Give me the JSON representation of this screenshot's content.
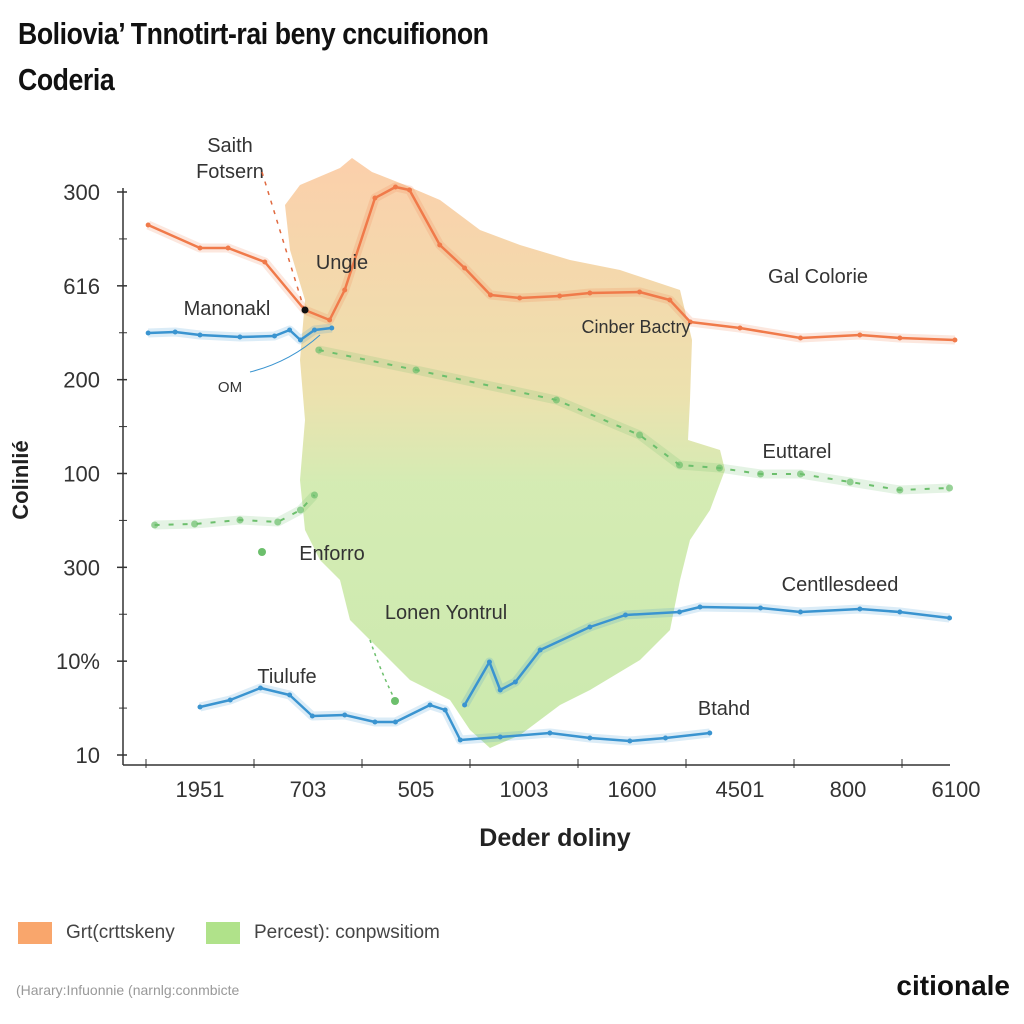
{
  "title_line1": "Boliovia’ Tnnotirt-rai beny cncuifionon",
  "title_line2": "Coderia",
  "chart_data": {
    "type": "line",
    "title": "Boliovia’ Tnnotirt-rai beny cncuifionon Coderia",
    "xlabel": "Deder doliny",
    "ylabel": "Colinlié",
    "x_tick_labels": [
      "1951",
      "703",
      "505",
      "1003",
      "1600",
      "4501",
      "800",
      "6100"
    ],
    "y_tick_labels": [
      "300",
      "616",
      "200",
      "100",
      "300",
      "10%",
      "10"
    ],
    "xlim": [
      -0.6,
      7.2
    ],
    "ylim": [
      0,
      573
    ],
    "grid": false,
    "series": [
      {
        "name": "orange-line",
        "color": "#f07a4a",
        "points": [
          [
            -0.48,
            540
          ],
          [
            0,
            517
          ],
          [
            0.26,
            517
          ],
          [
            0.6,
            503
          ],
          [
            0.97,
            455
          ],
          [
            1.2,
            445
          ],
          [
            1.34,
            475
          ],
          [
            1.62,
            567
          ],
          [
            1.81,
            578
          ],
          [
            1.94,
            575
          ],
          [
            2.22,
            520
          ],
          [
            2.45,
            497
          ],
          [
            2.69,
            470
          ],
          [
            2.96,
            467
          ],
          [
            3.33,
            469
          ],
          [
            3.61,
            472
          ],
          [
            4.07,
            473
          ],
          [
            4.35,
            465
          ],
          [
            4.54,
            443
          ],
          [
            5.0,
            437
          ],
          [
            5.56,
            427
          ],
          [
            6.11,
            430
          ],
          [
            6.48,
            427
          ],
          [
            6.99,
            425
          ]
        ]
      },
      {
        "name": "blue-upper-line",
        "color": "#3a94d0",
        "points": [
          [
            -0.48,
            432
          ],
          [
            -0.23,
            433
          ],
          [
            0,
            430
          ],
          [
            0.37,
            428
          ],
          [
            0.69,
            429
          ],
          [
            0.83,
            435
          ],
          [
            0.93,
            425
          ],
          [
            1.06,
            435
          ],
          [
            1.22,
            437
          ]
        ]
      },
      {
        "name": "green-dashed-left",
        "color": "#6cbf6c",
        "dashed": true,
        "points": [
          [
            -0.42,
            240
          ],
          [
            -0.05,
            241
          ],
          [
            0.37,
            245
          ],
          [
            0.72,
            243
          ],
          [
            0.93,
            255
          ],
          [
            1.06,
            270
          ]
        ]
      },
      {
        "name": "green-dashed-right",
        "color": "#6cbf6c",
        "dashed": true,
        "points": [
          [
            1.1,
            415
          ],
          [
            2.0,
            395
          ],
          [
            3.3,
            365
          ],
          [
            4.07,
            330
          ],
          [
            4.44,
            300
          ],
          [
            4.81,
            297
          ],
          [
            5.19,
            291
          ],
          [
            5.56,
            291
          ],
          [
            6.02,
            283
          ],
          [
            6.48,
            275
          ],
          [
            6.94,
            277
          ]
        ]
      },
      {
        "name": "blue-lower-line",
        "color": "#3a94d0",
        "points": [
          [
            0,
            58
          ],
          [
            0.28,
            65
          ],
          [
            0.56,
            77
          ],
          [
            0.83,
            70
          ],
          [
            1.04,
            49
          ],
          [
            1.34,
            50
          ],
          [
            1.62,
            43
          ],
          [
            1.81,
            43
          ],
          [
            2.13,
            60
          ],
          [
            2.27,
            55
          ],
          [
            2.41,
            25
          ],
          [
            2.78,
            28
          ],
          [
            3.24,
            32
          ],
          [
            3.61,
            27
          ],
          [
            3.98,
            24
          ],
          [
            4.31,
            27
          ],
          [
            4.72,
            32
          ]
        ]
      },
      {
        "name": "blue-rising-line",
        "color": "#3a94d0",
        "points": [
          [
            2.45,
            60
          ],
          [
            2.68,
            103
          ],
          [
            2.78,
            75
          ],
          [
            2.92,
            83
          ],
          [
            3.15,
            115
          ],
          [
            3.61,
            138
          ],
          [
            3.94,
            150
          ],
          [
            4.44,
            153
          ],
          [
            4.63,
            158
          ],
          [
            5.19,
            157
          ],
          [
            5.56,
            153
          ],
          [
            6.11,
            156
          ],
          [
            6.48,
            153
          ],
          [
            6.94,
            147
          ]
        ]
      }
    ],
    "annotations": {
      "saith": "Saith",
      "fotsern": "Fotsern",
      "ungie": "Ungie",
      "manonakl": "Manonakl",
      "om": "OM",
      "gal_colorie": "Gal Colorie",
      "cinber_bactry": "Cinber Bactry",
      "euttarel": "Euttarel",
      "enforro": "Enforro",
      "centllesdeed": "Centllesdeed",
      "lonen_yontrul": "Lonen Yontrul",
      "tiulufe": "Tiulufe",
      "btahd": "Btahd"
    },
    "legend": [
      {
        "label": "Grt(crttskeny",
        "color": "#f9a66c"
      },
      {
        "label": "Percest): conpwsitiom",
        "color": "#b0e28a"
      }
    ],
    "legend_position": "bottom-left"
  },
  "source": "(Harary:Infuonnie (narnlg:conmbicte",
  "logo": "citionale"
}
